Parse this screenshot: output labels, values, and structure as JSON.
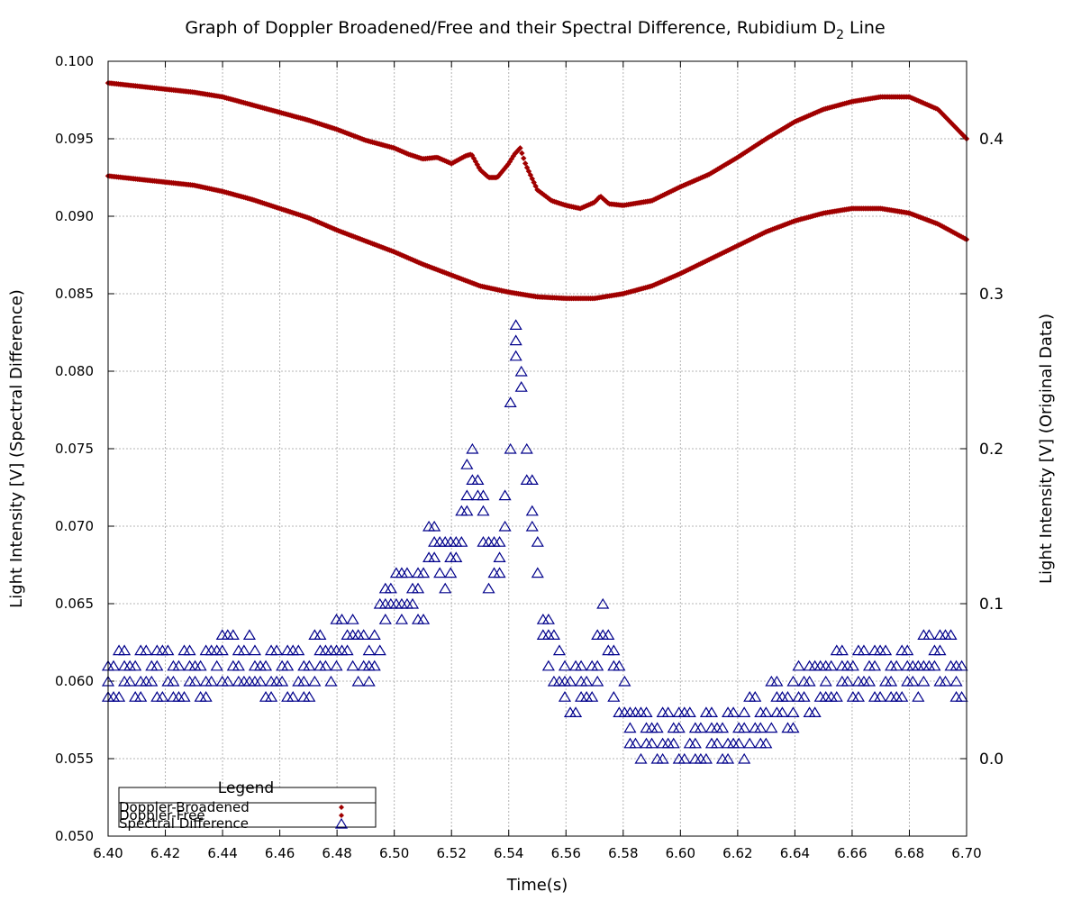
{
  "chart_data": {
    "type": "scatter",
    "title": "Graph of Doppler Broadened/Free and their Spectral Difference, Rubidium D",
    "title_subscript": "2",
    "title_suffix": " Line",
    "xlabel": "Time(s)",
    "ylabel_left": "Light Intensity [V] (Spectral Difference)",
    "ylabel_right": "Light Intensity [V] (Original Data)",
    "xlim": [
      6.4,
      6.7
    ],
    "ylim_left": [
      0.05,
      0.1
    ],
    "ylim_right": [
      -0.05,
      0.45
    ],
    "x_ticks": [
      "6.40",
      "6.42",
      "6.44",
      "6.46",
      "6.48",
      "6.50",
      "6.52",
      "6.54",
      "6.56",
      "6.58",
      "6.60",
      "6.62",
      "6.64",
      "6.66",
      "6.68",
      "6.70"
    ],
    "y_left_ticks": [
      "0.050",
      "0.055",
      "0.060",
      "0.065",
      "0.070",
      "0.075",
      "0.080",
      "0.085",
      "0.090",
      "0.095",
      "0.100"
    ],
    "y_right_ticks": [
      "0.0",
      "0.1",
      "0.2",
      "0.3",
      "0.4"
    ],
    "grid": true,
    "legend": {
      "title": "Legend",
      "position": "bottom-left",
      "entries": [
        "Doppler-Broadened",
        "Doppler-Free",
        "Spectral Difference"
      ]
    },
    "colors": {
      "doppler": "#a00000",
      "difference": "#00008b"
    },
    "series": [
      {
        "name": "Doppler-Broadened",
        "axis": "right",
        "marker": "diamond",
        "x": [
          6.4,
          6.41,
          6.42,
          6.43,
          6.44,
          6.45,
          6.46,
          6.47,
          6.48,
          6.49,
          6.5,
          6.51,
          6.52,
          6.53,
          6.54,
          6.55,
          6.56,
          6.57,
          6.58,
          6.59,
          6.6,
          6.61,
          6.62,
          6.63,
          6.64,
          6.65,
          6.66,
          6.67,
          6.68,
          6.69,
          6.7
        ],
        "y": [
          0.376,
          0.374,
          0.372,
          0.37,
          0.366,
          0.361,
          0.355,
          0.349,
          0.341,
          0.334,
          0.327,
          0.319,
          0.312,
          0.305,
          0.301,
          0.298,
          0.297,
          0.297,
          0.3,
          0.305,
          0.313,
          0.322,
          0.331,
          0.34,
          0.347,
          0.352,
          0.355,
          0.355,
          0.352,
          0.345,
          0.335
        ]
      },
      {
        "name": "Doppler-Free",
        "axis": "right",
        "marker": "diamond",
        "x": [
          6.4,
          6.41,
          6.42,
          6.43,
          6.44,
          6.45,
          6.46,
          6.47,
          6.48,
          6.49,
          6.5,
          6.505,
          6.51,
          6.515,
          6.52,
          6.525,
          6.527,
          6.53,
          6.533,
          6.536,
          6.54,
          6.542,
          6.544,
          6.546,
          6.55,
          6.555,
          6.56,
          6.565,
          6.57,
          6.572,
          6.575,
          6.58,
          6.59,
          6.6,
          6.61,
          6.62,
          6.63,
          6.64,
          6.65,
          6.66,
          6.67,
          6.68,
          6.69,
          6.7
        ],
        "y": [
          0.436,
          0.434,
          0.432,
          0.43,
          0.427,
          0.422,
          0.417,
          0.412,
          0.406,
          0.399,
          0.394,
          0.39,
          0.387,
          0.388,
          0.384,
          0.389,
          0.39,
          0.38,
          0.375,
          0.375,
          0.384,
          0.39,
          0.394,
          0.383,
          0.367,
          0.36,
          0.357,
          0.355,
          0.359,
          0.363,
          0.358,
          0.357,
          0.36,
          0.369,
          0.377,
          0.388,
          0.4,
          0.411,
          0.419,
          0.424,
          0.427,
          0.427,
          0.419,
          0.4
        ]
      },
      {
        "name": "Spectral Difference",
        "axis": "left",
        "marker": "triangle",
        "x": [
          6.4,
          6.405,
          6.41,
          6.415,
          6.42,
          6.425,
          6.43,
          6.435,
          6.44,
          6.445,
          6.45,
          6.455,
          6.46,
          6.465,
          6.47,
          6.475,
          6.48,
          6.485,
          6.49,
          6.495,
          6.5,
          6.505,
          6.51,
          6.513,
          6.516,
          6.52,
          6.523,
          6.526,
          6.528,
          6.531,
          6.534,
          6.537,
          6.54,
          6.543,
          6.546,
          6.549,
          6.552,
          6.555,
          6.56,
          6.565,
          6.57,
          6.573,
          6.576,
          6.58,
          6.585,
          6.59,
          6.595,
          6.6,
          6.605,
          6.61,
          6.62,
          6.63,
          6.64,
          6.65,
          6.66,
          6.67,
          6.68,
          6.69,
          6.7
        ],
        "y": [
          0.06,
          0.0605,
          0.06,
          0.0603,
          0.06,
          0.0605,
          0.0603,
          0.06,
          0.061,
          0.0615,
          0.0605,
          0.06,
          0.06,
          0.0605,
          0.0603,
          0.0612,
          0.0617,
          0.0618,
          0.061,
          0.0625,
          0.066,
          0.0645,
          0.065,
          0.069,
          0.068,
          0.0665,
          0.07,
          0.0725,
          0.074,
          0.07,
          0.066,
          0.068,
          0.074,
          0.0825,
          0.075,
          0.069,
          0.0635,
          0.061,
          0.0595,
          0.0585,
          0.0605,
          0.063,
          0.061,
          0.058,
          0.0565,
          0.0555,
          0.0565,
          0.056,
          0.056,
          0.0555,
          0.056,
          0.0575,
          0.0585,
          0.0595,
          0.06,
          0.0605,
          0.06,
          0.061,
          0.06
        ]
      }
    ]
  }
}
